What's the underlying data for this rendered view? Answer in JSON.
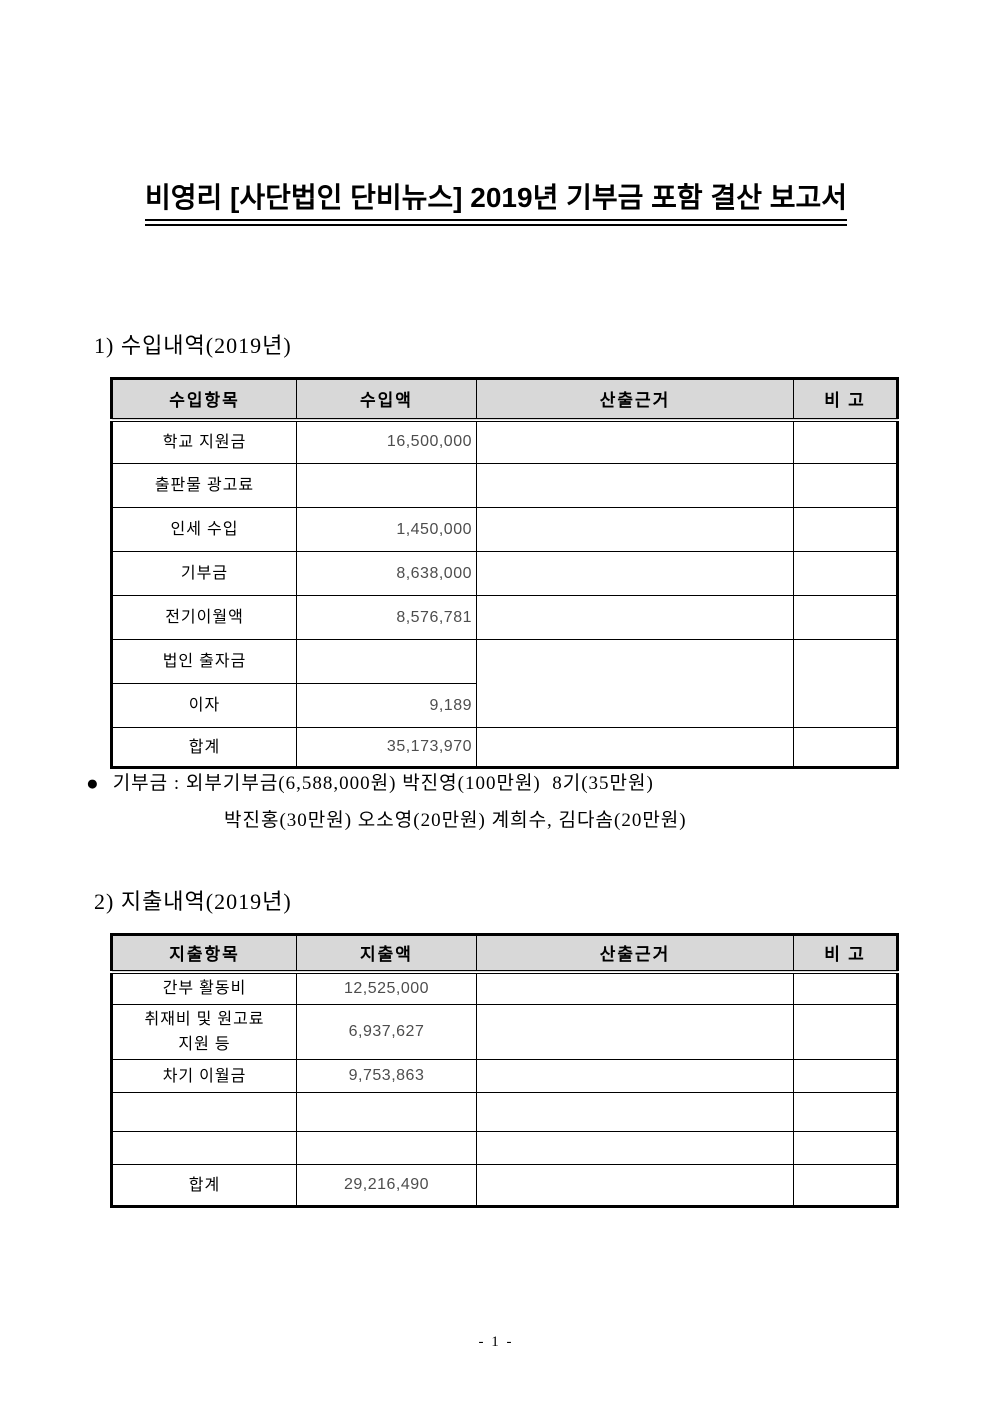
{
  "page": {
    "title": "비영리 [사단법인 단비뉴스] 2019년 기부금 포함 결산 보고서",
    "page_number": "- 1 -"
  },
  "income_section": {
    "heading": "1) 수입내역(2019년)",
    "table": {
      "headers": [
        "수입항목",
        "수입액",
        "산출근거",
        "비 고"
      ],
      "rows": [
        {
          "item": "학교 지원금",
          "amount": "16,500,000",
          "basis": "",
          "note": ""
        },
        {
          "item": "출판물 광고료",
          "amount": "",
          "basis": "",
          "note": ""
        },
        {
          "item": "인세 수입",
          "amount": "1,450,000",
          "basis": "",
          "note": ""
        },
        {
          "item": "기부금",
          "amount": "8,638,000",
          "basis": "",
          "note": ""
        },
        {
          "item": "전기이월액",
          "amount": "8,576,781",
          "basis": "",
          "note": ""
        },
        {
          "item": "법인 출자금",
          "amount": "",
          "basis": "",
          "note": ""
        },
        {
          "item": "이자",
          "amount": "9,189"
        },
        {
          "item": "합계",
          "amount": "35,173,970",
          "basis": "",
          "note": ""
        }
      ]
    },
    "note": {
      "bullet": "●",
      "line1": "기부금 : 외부기부금(6,588,000원) 박진영(100만원)  8기(35만원)",
      "line2": "박진홍(30만원) 오소영(20만원) 계희수, 김다솜(20만원)"
    }
  },
  "expense_section": {
    "heading": "2) 지출내역(2019년)",
    "table": {
      "headers": [
        "지출항목",
        "지출액",
        "산출근거",
        "비 고"
      ],
      "rows": [
        {
          "item": "간부 활동비",
          "amount": "12,525,000",
          "basis": "",
          "note": ""
        },
        {
          "item": [
            "취재비 및 원고료",
            "지원 등"
          ],
          "amount": "6,937,627",
          "basis": "",
          "note": ""
        },
        {
          "item": "차기 이월금",
          "amount": "9,753,863",
          "basis": "",
          "note": ""
        },
        {
          "item": "",
          "amount": "",
          "basis": "",
          "note": ""
        },
        {
          "item": "",
          "amount": "",
          "basis": "",
          "note": ""
        },
        {
          "item": "합계",
          "amount": "29,216,490",
          "basis": "",
          "note": ""
        }
      ]
    }
  },
  "colors": {
    "header_bg": "#d8d8d8",
    "border": "#000000",
    "number_text": "#4d4d4d"
  }
}
